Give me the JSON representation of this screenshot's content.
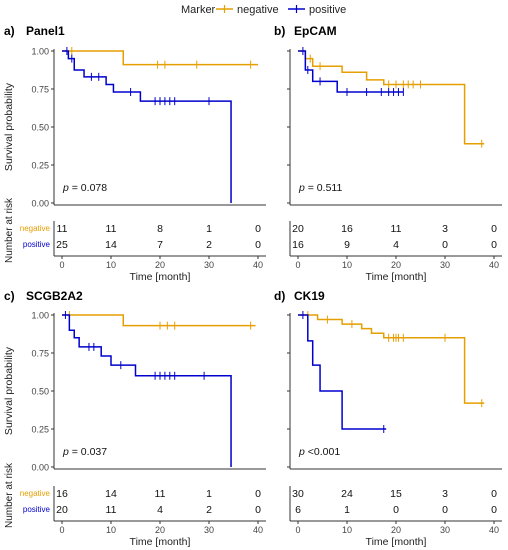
{
  "legend": {
    "title": "Marker",
    "entries": [
      {
        "label": "negative",
        "color": "#E69F00"
      },
      {
        "label": "positive",
        "color": "#0000CD"
      }
    ]
  },
  "chart_data": [
    {
      "type": "line",
      "panel_tag": "a)",
      "title": "Panel1",
      "ylabel": "Survival probability",
      "xlabel": "Time [month]",
      "xlim": [
        0,
        40
      ],
      "ylim": [
        0,
        1
      ],
      "xticks": [
        0,
        10,
        20,
        30,
        40
      ],
      "yticks": [
        "0.00",
        "0.25",
        "0.50",
        "0.75",
        "1.00"
      ],
      "pvalue": {
        "prefix": "p",
        "text": " = 0.078"
      },
      "risk_label": "Number at risk",
      "risk_times": [
        0,
        10,
        20,
        30,
        40
      ],
      "series": [
        {
          "name": "negative",
          "color": "#E69F00",
          "steps": [
            [
              0,
              1.0
            ],
            [
              12.5,
              0.91
            ],
            [
              40,
              0.91
            ]
          ],
          "censor": [
            [
              2,
              1.0
            ],
            [
              19.5,
              0.91
            ],
            [
              21,
              0.91
            ],
            [
              27.5,
              0.91
            ],
            [
              38.5,
              0.91
            ]
          ],
          "risk": [
            11,
            11,
            8,
            1,
            0
          ]
        },
        {
          "name": "positive",
          "color": "#0000CD",
          "steps": [
            [
              0,
              1.0
            ],
            [
              1.3,
              0.95
            ],
            [
              2.5,
              0.875
            ],
            [
              4.5,
              0.83
            ],
            [
              9,
              0.78
            ],
            [
              10.5,
              0.73
            ],
            [
              16,
              0.67
            ],
            [
              34.5,
              0.67
            ],
            [
              34.5,
              0.0
            ]
          ],
          "censor": [
            [
              1,
              1.0
            ],
            [
              2,
              0.95
            ],
            [
              6,
              0.83
            ],
            [
              7.5,
              0.83
            ],
            [
              14,
              0.73
            ],
            [
              19,
              0.67
            ],
            [
              20,
              0.67
            ],
            [
              21,
              0.67
            ],
            [
              22,
              0.67
            ],
            [
              23,
              0.67
            ],
            [
              30,
              0.67
            ]
          ],
          "risk": [
            25,
            14,
            7,
            2,
            0
          ]
        }
      ]
    },
    {
      "type": "line",
      "panel_tag": "b)",
      "title": "EpCAM",
      "ylabel": "",
      "xlabel": "Time [month]",
      "xlim": [
        0,
        40
      ],
      "ylim": [
        0,
        1
      ],
      "xticks": [
        0,
        10,
        20,
        30,
        40
      ],
      "yticks": [],
      "pvalue": {
        "prefix": "p",
        "text": " = 0.511"
      },
      "risk_label": "",
      "risk_times": [
        0,
        10,
        20,
        30,
        40
      ],
      "series": [
        {
          "name": "negative",
          "color": "#E69F00",
          "steps": [
            [
              0,
              1.0
            ],
            [
              1.5,
              0.95
            ],
            [
              3,
              0.9
            ],
            [
              9,
              0.86
            ],
            [
              14,
              0.81
            ],
            [
              17.5,
              0.78
            ],
            [
              34,
              0.78
            ],
            [
              34,
              0.39
            ],
            [
              38,
              0.39
            ]
          ],
          "censor": [
            [
              2.5,
              0.95
            ],
            [
              4.5,
              0.9
            ],
            [
              18.5,
              0.78
            ],
            [
              20,
              0.78
            ],
            [
              21.5,
              0.78
            ],
            [
              22.5,
              0.78
            ],
            [
              23.5,
              0.78
            ],
            [
              25,
              0.78
            ],
            [
              37.5,
              0.39
            ]
          ],
          "risk": [
            20,
            16,
            11,
            3,
            0
          ]
        },
        {
          "name": "positive",
          "color": "#0000CD",
          "steps": [
            [
              0,
              1.0
            ],
            [
              1.5,
              0.875
            ],
            [
              3,
              0.8
            ],
            [
              8,
              0.73
            ],
            [
              21.5,
              0.73
            ]
          ],
          "censor": [
            [
              1,
              1.0
            ],
            [
              2,
              0.875
            ],
            [
              4.5,
              0.8
            ],
            [
              10,
              0.73
            ],
            [
              14,
              0.73
            ],
            [
              17,
              0.73
            ],
            [
              18.5,
              0.73
            ],
            [
              19.5,
              0.73
            ],
            [
              20.5,
              0.73
            ],
            [
              21.5,
              0.73
            ]
          ],
          "risk": [
            16,
            9,
            4,
            0,
            0
          ]
        }
      ]
    },
    {
      "type": "line",
      "panel_tag": "c)",
      "title": "SCGB2A2",
      "ylabel": "Survival probability",
      "xlabel": "Time [month]",
      "xlim": [
        0,
        40
      ],
      "ylim": [
        0,
        1
      ],
      "xticks": [
        0,
        10,
        20,
        30,
        40
      ],
      "yticks": [
        "0.00",
        "0.25",
        "0.50",
        "0.75",
        "1.00"
      ],
      "pvalue": {
        "prefix": "p",
        "text": " = 0.037"
      },
      "risk_label": "Number at risk",
      "risk_times": [
        0,
        10,
        20,
        30,
        40
      ],
      "series": [
        {
          "name": "negative",
          "color": "#E69F00",
          "steps": [
            [
              0,
              1.0
            ],
            [
              12.5,
              0.93
            ],
            [
              39.5,
              0.93
            ]
          ],
          "censor": [
            [
              1.5,
              1.0
            ],
            [
              20,
              0.93
            ],
            [
              21.5,
              0.93
            ],
            [
              23,
              0.93
            ],
            [
              38.5,
              0.93
            ]
          ],
          "risk": [
            16,
            14,
            11,
            1,
            0
          ]
        },
        {
          "name": "positive",
          "color": "#0000CD",
          "steps": [
            [
              0,
              1.0
            ],
            [
              1.5,
              0.9
            ],
            [
              2.5,
              0.85
            ],
            [
              3.5,
              0.79
            ],
            [
              8,
              0.73
            ],
            [
              10,
              0.67
            ],
            [
              15,
              0.6
            ],
            [
              34.5,
              0.6
            ],
            [
              34.5,
              0.0
            ]
          ],
          "censor": [
            [
              0.7,
              1.0
            ],
            [
              5.5,
              0.79
            ],
            [
              6.5,
              0.79
            ],
            [
              12,
              0.67
            ],
            [
              19,
              0.6
            ],
            [
              20,
              0.6
            ],
            [
              21,
              0.6
            ],
            [
              22,
              0.6
            ],
            [
              23,
              0.6
            ],
            [
              29,
              0.6
            ]
          ],
          "risk": [
            20,
            11,
            4,
            2,
            0
          ]
        }
      ]
    },
    {
      "type": "line",
      "panel_tag": "d)",
      "title": "CK19",
      "ylabel": "",
      "xlabel": "Time [month]",
      "xlim": [
        0,
        40
      ],
      "ylim": [
        0,
        1
      ],
      "xticks": [
        0,
        10,
        20,
        30,
        40
      ],
      "yticks": [],
      "pvalue": {
        "prefix": "p",
        "text": " <0.001"
      },
      "risk_label": "",
      "risk_times": [
        0,
        10,
        20,
        30,
        40
      ],
      "series": [
        {
          "name": "negative",
          "color": "#E69F00",
          "steps": [
            [
              0,
              1.0
            ],
            [
              4,
              0.97
            ],
            [
              9,
              0.94
            ],
            [
              13,
              0.91
            ],
            [
              15,
              0.88
            ],
            [
              17.5,
              0.85
            ],
            [
              34,
              0.85
            ],
            [
              34,
              0.42
            ],
            [
              38,
              0.42
            ]
          ],
          "censor": [
            [
              2,
              1.0
            ],
            [
              6,
              0.97
            ],
            [
              11,
              0.94
            ],
            [
              18.5,
              0.85
            ],
            [
              19.5,
              0.85
            ],
            [
              20,
              0.85
            ],
            [
              20.5,
              0.85
            ],
            [
              21.5,
              0.85
            ],
            [
              30,
              0.85
            ],
            [
              37.5,
              0.42
            ]
          ],
          "risk": [
            30,
            24,
            15,
            3,
            0
          ]
        },
        {
          "name": "positive",
          "color": "#0000CD",
          "steps": [
            [
              0,
              1.0
            ],
            [
              2,
              0.83
            ],
            [
              3,
              0.67
            ],
            [
              4.5,
              0.5
            ],
            [
              9,
              0.25
            ],
            [
              18,
              0.25
            ]
          ],
          "censor": [
            [
              1,
              1.0
            ],
            [
              17.5,
              0.25
            ]
          ],
          "risk": [
            6,
            1,
            0,
            0,
            0
          ]
        }
      ]
    }
  ]
}
